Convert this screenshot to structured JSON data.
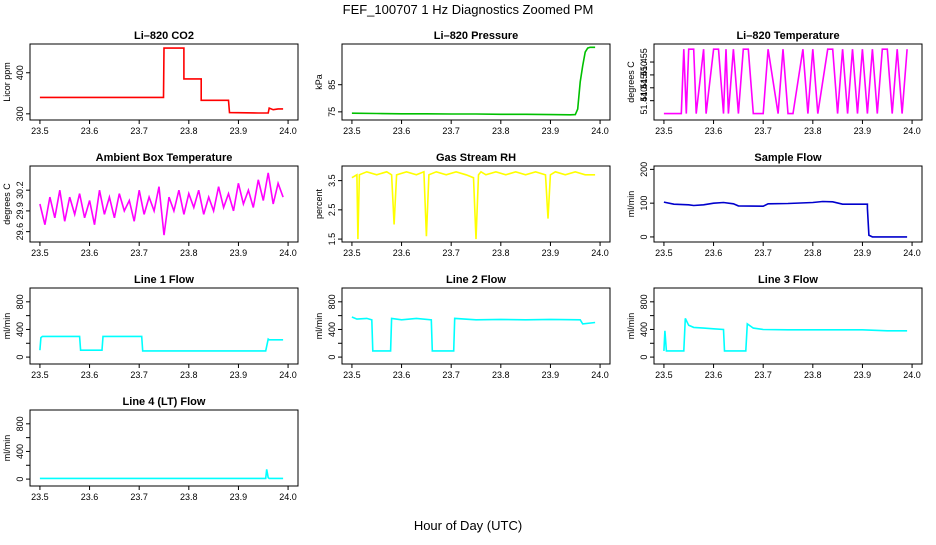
{
  "page": {
    "title": "FEF_100707  1 Hz Diagnostics Zoomed PM",
    "xlabel": "Hour of Day (UTC)"
  },
  "chart_data": [
    {
      "type": "line",
      "title": "Li–820 CO2",
      "ylabel": "Licor ppm",
      "color": "#ff0000",
      "xlim": [
        23.5,
        24.0
      ],
      "ylim": [
        285,
        470
      ],
      "xticks": [
        23.5,
        23.6,
        23.7,
        23.8,
        23.9,
        24.0
      ],
      "yticks": [
        300,
        400
      ],
      "xticklabels": [
        "23.5",
        "23.6",
        "23.7",
        "23.8",
        "23.9",
        "24.0"
      ],
      "yticklabels": [
        "300",
        "400"
      ],
      "x": [
        23.5,
        23.55,
        23.6,
        23.65,
        23.7,
        23.749,
        23.75,
        23.79,
        23.79,
        23.825,
        23.825,
        23.88,
        23.882,
        23.94,
        23.95,
        23.96,
        23.962,
        23.97,
        23.98,
        23.99
      ],
      "y": [
        340,
        340,
        340,
        340,
        340,
        340,
        460,
        460,
        385,
        385,
        333,
        333,
        303,
        302,
        302,
        302,
        314,
        310,
        312,
        312
      ]
    },
    {
      "type": "line",
      "title": "Li–820 Pressure",
      "ylabel": "kPa",
      "color": "#00c000",
      "xlim": [
        23.5,
        24.0
      ],
      "ylim": [
        72,
        100
      ],
      "xticks": [
        23.5,
        23.6,
        23.7,
        23.8,
        23.9,
        24.0
      ],
      "yticks": [
        75,
        85
      ],
      "xticklabels": [
        "23.5",
        "23.6",
        "23.7",
        "23.8",
        "23.9",
        "24.0"
      ],
      "yticklabels": [
        "75",
        "85"
      ],
      "x": [
        23.5,
        23.55,
        23.6,
        23.65,
        23.7,
        23.75,
        23.8,
        23.85,
        23.9,
        23.94,
        23.95,
        23.955,
        23.96,
        23.965,
        23.97,
        23.975,
        23.98,
        23.99
      ],
      "y": [
        74.5,
        74.4,
        74.3,
        74.3,
        74.2,
        74.2,
        74.1,
        74.1,
        74.0,
        73.9,
        74.0,
        76,
        86,
        92,
        97,
        98.5,
        98.8,
        98.8
      ]
    },
    {
      "type": "line",
      "title": "Li–820 Temperature",
      "ylabel": "degrees C",
      "color": "#ff00ff",
      "xlim": [
        23.5,
        24.0
      ],
      "ylim": [
        51.4325,
        51.462
      ],
      "xticks": [
        23.5,
        23.6,
        23.7,
        23.8,
        23.9,
        24.0
      ],
      "yticks": [
        51.44,
        51.445,
        51.45,
        51.455
      ],
      "xticklabels": [
        "23.5",
        "23.6",
        "23.7",
        "23.8",
        "23.9",
        "24.0"
      ],
      "yticklabels": [
        "51.440",
        "51.445",
        "51.450",
        "51.455"
      ],
      "x": [
        23.5,
        23.535,
        23.54,
        23.545,
        23.55,
        23.56,
        23.565,
        23.58,
        23.585,
        23.6,
        23.61,
        23.62,
        23.625,
        23.63,
        23.64,
        23.65,
        23.66,
        23.67,
        23.68,
        23.7,
        23.71,
        23.73,
        23.74,
        23.75,
        23.76,
        23.78,
        23.79,
        23.8,
        23.81,
        23.83,
        23.84,
        23.85,
        23.86,
        23.87,
        23.88,
        23.89,
        23.9,
        23.91,
        23.92,
        23.93,
        23.94,
        23.95,
        23.96,
        23.97,
        23.98,
        23.99
      ],
      "y": [
        51.435,
        51.435,
        51.46,
        51.435,
        51.46,
        51.46,
        51.435,
        51.46,
        51.435,
        51.46,
        51.46,
        51.435,
        51.46,
        51.435,
        51.46,
        51.435,
        51.46,
        51.46,
        51.435,
        51.435,
        51.46,
        51.435,
        51.46,
        51.435,
        51.435,
        51.46,
        51.435,
        51.46,
        51.435,
        51.46,
        51.46,
        51.435,
        51.46,
        51.435,
        51.46,
        51.435,
        51.46,
        51.435,
        51.46,
        51.435,
        51.46,
        51.46,
        51.435,
        51.46,
        51.435,
        51.46
      ]
    },
    {
      "type": "line",
      "title": "Ambient Box Temperature",
      "ylabel": "degrees C",
      "color": "#ff00ff",
      "xlim": [
        23.5,
        24.0
      ],
      "ylim": [
        29.45,
        30.55
      ],
      "xticks": [
        23.5,
        23.6,
        23.7,
        23.8,
        23.9,
        24.0
      ],
      "yticks": [
        29.6,
        29.9,
        30.2
      ],
      "xticklabels": [
        "23.5",
        "23.6",
        "23.7",
        "23.8",
        "23.9",
        "24.0"
      ],
      "yticklabels": [
        "29.6",
        "29.9",
        "30.2"
      ],
      "x": [
        23.5,
        23.51,
        23.52,
        23.53,
        23.54,
        23.55,
        23.56,
        23.57,
        23.58,
        23.59,
        23.6,
        23.61,
        23.62,
        23.63,
        23.64,
        23.65,
        23.66,
        23.67,
        23.68,
        23.69,
        23.7,
        23.71,
        23.72,
        23.73,
        23.74,
        23.75,
        23.76,
        23.77,
        23.78,
        23.79,
        23.8,
        23.81,
        23.82,
        23.83,
        23.84,
        23.85,
        23.86,
        23.87,
        23.88,
        23.89,
        23.9,
        23.91,
        23.92,
        23.93,
        23.94,
        23.95,
        23.96,
        23.97,
        23.98,
        23.99
      ],
      "y": [
        30.0,
        29.7,
        30.1,
        29.8,
        30.2,
        29.75,
        30.1,
        29.85,
        30.15,
        29.8,
        30.05,
        29.7,
        30.2,
        29.85,
        30.1,
        29.8,
        30.15,
        29.9,
        30.05,
        29.75,
        30.2,
        29.85,
        30.1,
        29.9,
        30.25,
        29.55,
        30.1,
        29.9,
        30.2,
        29.85,
        30.15,
        29.95,
        30.2,
        29.85,
        30.1,
        29.9,
        30.25,
        29.95,
        30.15,
        29.9,
        30.3,
        30.0,
        30.2,
        29.95,
        30.35,
        30.05,
        30.45,
        30.0,
        30.3,
        30.1
      ]
    },
    {
      "type": "line",
      "title": "Gas Stream RH",
      "ylabel": "percent",
      "color": "#ffff00",
      "xlim": [
        23.5,
        24.0
      ],
      "ylim": [
        1.4,
        4.0
      ],
      "xticks": [
        23.5,
        23.6,
        23.7,
        23.8,
        23.9,
        24.0
      ],
      "yticks": [
        1.5,
        2.5,
        3.5
      ],
      "xticklabels": [
        "23.5",
        "23.6",
        "23.7",
        "23.8",
        "23.9",
        "24.0"
      ],
      "yticklabels": [
        "1.5",
        "2.5",
        "3.5"
      ],
      "x": [
        23.5,
        23.51,
        23.512,
        23.515,
        23.53,
        23.55,
        23.57,
        23.58,
        23.585,
        23.59,
        23.61,
        23.63,
        23.645,
        23.65,
        23.655,
        23.67,
        23.69,
        23.71,
        23.73,
        23.745,
        23.75,
        23.755,
        23.76,
        23.77,
        23.79,
        23.81,
        23.83,
        23.85,
        23.87,
        23.89,
        23.895,
        23.9,
        23.91,
        23.93,
        23.95,
        23.97,
        23.99
      ],
      "y": [
        3.6,
        3.7,
        1.5,
        3.7,
        3.8,
        3.7,
        3.8,
        3.7,
        2.0,
        3.7,
        3.8,
        3.7,
        3.8,
        1.6,
        3.7,
        3.8,
        3.7,
        3.8,
        3.7,
        3.6,
        1.5,
        3.7,
        3.8,
        3.7,
        3.8,
        3.7,
        3.8,
        3.7,
        3.8,
        3.7,
        2.2,
        3.7,
        3.8,
        3.7,
        3.8,
        3.7,
        3.7
      ]
    },
    {
      "type": "line",
      "title": "Sample Flow",
      "ylabel": "ml/min",
      "color": "#0000cc",
      "xlim": [
        23.5,
        24.0
      ],
      "ylim": [
        -15,
        210
      ],
      "xticks": [
        23.5,
        23.6,
        23.7,
        23.8,
        23.9,
        24.0
      ],
      "yticks": [
        0,
        100,
        200
      ],
      "xticklabels": [
        "23.5",
        "23.6",
        "23.7",
        "23.8",
        "23.9",
        "24.0"
      ],
      "yticklabels": [
        "0",
        "100",
        "200"
      ],
      "x": [
        23.5,
        23.52,
        23.55,
        23.56,
        23.58,
        23.6,
        23.62,
        23.64,
        23.65,
        23.7,
        23.71,
        23.75,
        23.8,
        23.82,
        23.84,
        23.86,
        23.91,
        23.91,
        23.913,
        23.92,
        23.99
      ],
      "y": [
        103,
        97,
        95,
        93,
        95,
        100,
        102,
        98,
        92,
        91,
        98,
        99,
        102,
        105,
        104,
        97,
        97,
        85,
        5,
        0,
        0
      ]
    },
    {
      "type": "line",
      "title": "Line 1 Flow",
      "ylabel": "ml/min",
      "color": "#00ffff",
      "xlim": [
        23.5,
        24.0
      ],
      "ylim": [
        -100,
        1000
      ],
      "xticks": [
        23.5,
        23.6,
        23.7,
        23.8,
        23.9,
        24.0
      ],
      "yticks": [
        0,
        200,
        400,
        600,
        800
      ],
      "xticklabels": [
        "23.5",
        "23.6",
        "23.7",
        "23.8",
        "23.9",
        "24.0"
      ],
      "yticklabels": [
        "0",
        "400",
        "800"
      ],
      "x": [
        23.5,
        23.502,
        23.505,
        23.58,
        23.582,
        23.625,
        23.627,
        23.705,
        23.707,
        23.75,
        23.8,
        23.85,
        23.9,
        23.955,
        23.96,
        23.962,
        23.99
      ],
      "y": [
        100,
        280,
        300,
        300,
        100,
        100,
        300,
        300,
        90,
        90,
        90,
        90,
        90,
        90,
        260,
        250,
        250
      ]
    },
    {
      "type": "line",
      "title": "Line 2 Flow",
      "ylabel": "ml/min",
      "color": "#00ffff",
      "xlim": [
        23.5,
        24.0
      ],
      "ylim": [
        -100,
        1000
      ],
      "xticks": [
        23.5,
        23.6,
        23.7,
        23.8,
        23.9,
        24.0
      ],
      "yticks": [
        0,
        200,
        400,
        600,
        800
      ],
      "xticklabels": [
        "23.5",
        "23.6",
        "23.7",
        "23.8",
        "23.9",
        "24.0"
      ],
      "yticklabels": [
        "0",
        "400",
        "800"
      ],
      "x": [
        23.5,
        23.51,
        23.53,
        23.54,
        23.542,
        23.578,
        23.58,
        23.6,
        23.63,
        23.66,
        23.662,
        23.705,
        23.707,
        23.75,
        23.8,
        23.85,
        23.9,
        23.96,
        23.965,
        23.99
      ],
      "y": [
        580,
        550,
        560,
        540,
        90,
        90,
        560,
        540,
        560,
        540,
        90,
        90,
        560,
        540,
        545,
        540,
        545,
        540,
        480,
        500
      ]
    },
    {
      "type": "line",
      "title": "Line 3 Flow",
      "ylabel": "ml/min",
      "color": "#00ffff",
      "xlim": [
        23.5,
        24.0
      ],
      "ylim": [
        -100,
        1000
      ],
      "xticks": [
        23.5,
        23.6,
        23.7,
        23.8,
        23.9,
        24.0
      ],
      "yticks": [
        0,
        200,
        400,
        600,
        800
      ],
      "xticklabels": [
        "23.5",
        "23.6",
        "23.7",
        "23.8",
        "23.9",
        "24.0"
      ],
      "yticklabels": [
        "0",
        "400",
        "800"
      ],
      "x": [
        23.5,
        23.502,
        23.505,
        23.54,
        23.543,
        23.55,
        23.56,
        23.58,
        23.6,
        23.62,
        23.622,
        23.665,
        23.668,
        23.68,
        23.7,
        23.75,
        23.8,
        23.85,
        23.9,
        23.95,
        23.99
      ],
      "y": [
        90,
        380,
        90,
        90,
        560,
        460,
        430,
        420,
        410,
        400,
        90,
        90,
        480,
        420,
        400,
        395,
        395,
        395,
        395,
        380,
        380
      ]
    },
    {
      "type": "line",
      "title": "Line 4 (LT) Flow",
      "ylabel": "ml/min",
      "color": "#00ffff",
      "xlim": [
        23.5,
        24.0
      ],
      "ylim": [
        -100,
        1000
      ],
      "xticks": [
        23.5,
        23.6,
        23.7,
        23.8,
        23.9,
        24.0
      ],
      "yticks": [
        0,
        200,
        400,
        600,
        800
      ],
      "xticklabels": [
        "23.5",
        "23.6",
        "23.7",
        "23.8",
        "23.9",
        "24.0"
      ],
      "yticklabels": [
        "0",
        "400",
        "800"
      ],
      "x": [
        23.5,
        23.55,
        23.6,
        23.65,
        23.7,
        23.75,
        23.8,
        23.85,
        23.9,
        23.955,
        23.957,
        23.96,
        23.962,
        23.99
      ],
      "y": [
        10,
        10,
        10,
        10,
        10,
        10,
        10,
        10,
        10,
        10,
        140,
        20,
        10,
        10
      ]
    }
  ]
}
